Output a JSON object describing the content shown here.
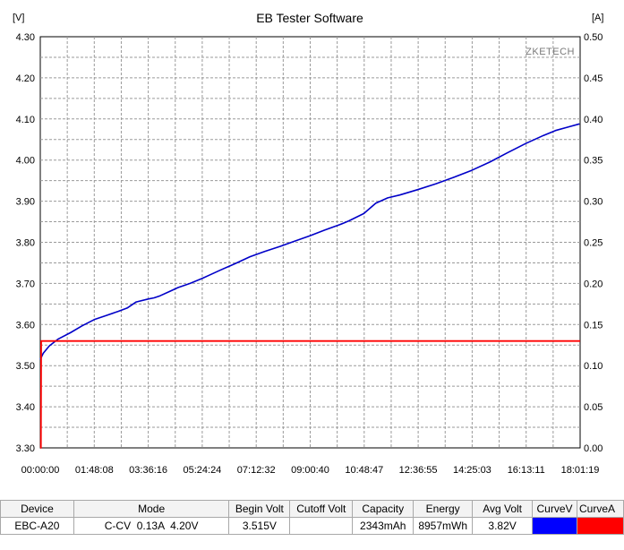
{
  "chart_data": {
    "type": "line",
    "title": "EB Tester Software",
    "watermark": "ZKETECH",
    "y_left": {
      "unit": "[V]",
      "ylim": [
        3.3,
        4.3
      ],
      "ticks": [
        "3.30",
        "3.40",
        "3.50",
        "3.60",
        "3.70",
        "3.80",
        "3.90",
        "4.00",
        "4.10",
        "4.20",
        "4.30"
      ]
    },
    "y_right": {
      "unit": "[A]",
      "ylim": [
        0.0,
        0.5
      ],
      "ticks": [
        "0.00",
        "0.05",
        "0.10",
        "0.15",
        "0.20",
        "0.25",
        "0.30",
        "0.35",
        "0.40",
        "0.45",
        "0.50"
      ]
    },
    "x_ticks": [
      "00:00:00",
      "01:48:08",
      "03:36:16",
      "05:24:24",
      "07:12:32",
      "09:00:40",
      "10:48:47",
      "12:36:55",
      "14:25:03",
      "16:13:11",
      "18:01:19"
    ],
    "x_range_hours": [
      0,
      18.022
    ],
    "grid": true,
    "series": [
      {
        "axis": "left",
        "color": "#0000c8",
        "x": [
          0,
          0.1,
          0.3,
          0.6,
          1.0,
          1.4,
          1.8,
          2.2,
          2.6,
          2.9,
          3.2,
          3.6,
          3.8,
          4.0,
          4.3,
          4.6,
          5.0,
          5.4,
          5.7,
          6.0,
          6.5,
          7.0,
          7.5,
          8.0,
          8.5,
          9.0,
          9.5,
          10.0,
          10.3,
          10.8,
          11.2,
          11.6,
          12.0,
          12.6,
          13.2,
          13.8,
          14.4,
          15.0,
          15.6,
          16.2,
          16.8,
          17.2,
          17.6,
          18.0
        ],
        "y": [
          3.515,
          3.53,
          3.548,
          3.565,
          3.58,
          3.597,
          3.612,
          3.622,
          3.632,
          3.64,
          3.655,
          3.662,
          3.665,
          3.67,
          3.68,
          3.69,
          3.7,
          3.712,
          3.722,
          3.732,
          3.748,
          3.765,
          3.778,
          3.79,
          3.803,
          3.816,
          3.83,
          3.843,
          3.852,
          3.87,
          3.895,
          3.908,
          3.915,
          3.928,
          3.942,
          3.958,
          3.975,
          3.995,
          4.018,
          4.04,
          4.06,
          4.072,
          4.08,
          4.088
        ]
      },
      {
        "axis": "right",
        "color": "#ff0000",
        "x": [
          0,
          0.02,
          0.03,
          18.022
        ],
        "y": [
          0.0,
          0.0,
          0.13,
          0.13
        ]
      }
    ]
  },
  "table": {
    "headers": [
      "Device",
      "Mode",
      "Begin Volt",
      "Cutoff Volt",
      "Capacity",
      "Energy",
      "Avg Volt",
      "CurveV",
      "CurveA"
    ],
    "row": {
      "device": "EBC-A20",
      "mode": "C-CV  0.13A  4.20V",
      "begin_volt": "3.515V",
      "cutoff_volt": "",
      "capacity": "2343mAh",
      "energy": "8957mWh",
      "avg_volt": "3.82V",
      "curve_v_color": "#0000ff",
      "curve_a_color": "#ff0000"
    }
  }
}
